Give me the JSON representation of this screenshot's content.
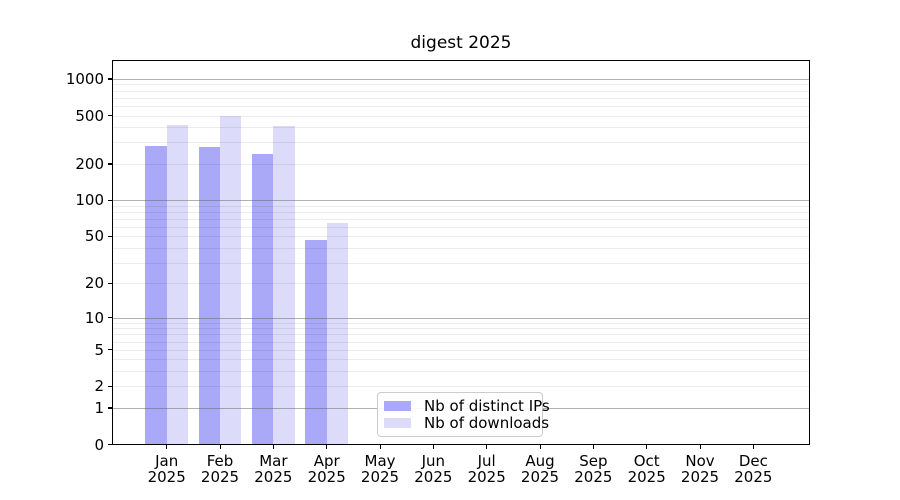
{
  "title": "digest 2025",
  "chart_data": {
    "type": "bar",
    "title": "digest 2025",
    "categories": [
      "Jan",
      "Feb",
      "Mar",
      "Apr",
      "May",
      "Jun",
      "Jul",
      "Aug",
      "Sep",
      "Oct",
      "Nov",
      "Dec"
    ],
    "x_year_line": "2025",
    "series": [
      {
        "name": "Nb of distinct IPs",
        "color": "#a9a9f7",
        "values": [
          280,
          275,
          240,
          47,
          0,
          0,
          0,
          0,
          0,
          0,
          0,
          0
        ]
      },
      {
        "name": "Nb of downloads",
        "color": "#dcdcfa",
        "values": [
          420,
          500,
          410,
          65,
          0,
          0,
          0,
          0,
          0,
          0,
          0,
          0
        ]
      }
    ],
    "xlabel": "",
    "ylabel": "",
    "yscale": "log1p",
    "yticks": [
      0,
      1,
      2,
      5,
      10,
      20,
      50,
      100,
      200,
      500,
      1000
    ],
    "ylim": [
      0,
      1430
    ],
    "grid": "horizontal major+minor, drawn over bars",
    "legend_position": "lower center inside axes",
    "colors": {
      "background": "#ffffff",
      "spine": "#000000",
      "major_grid": "#9a9a9a",
      "minor_grid": "#ebebeb"
    }
  }
}
